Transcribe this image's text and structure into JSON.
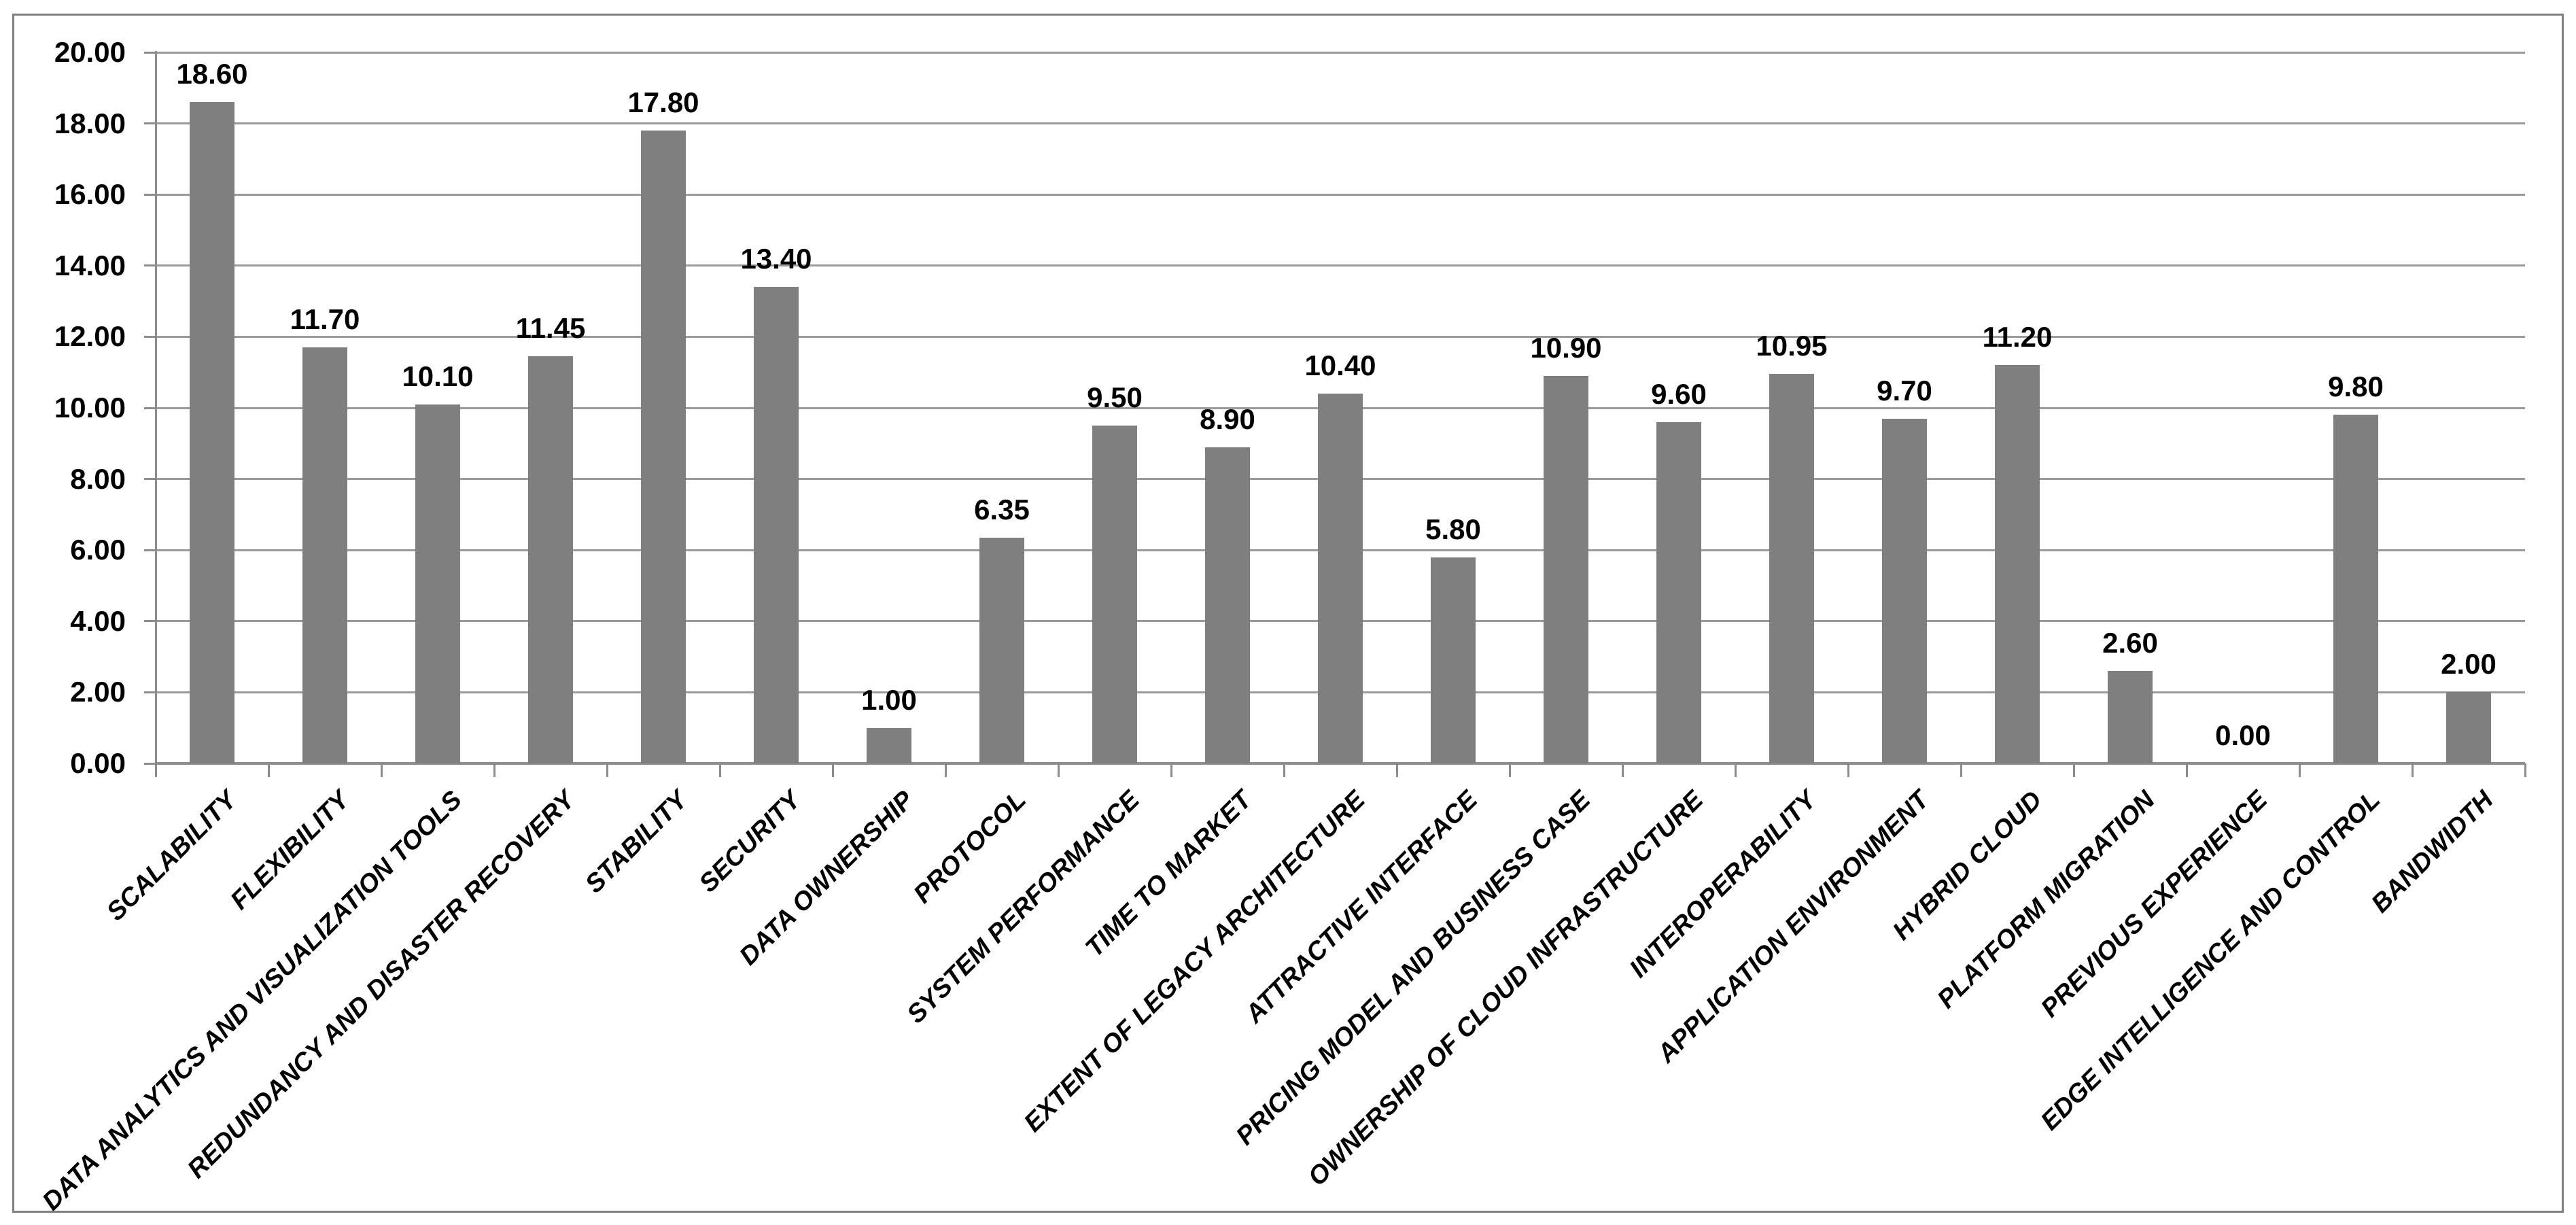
{
  "chart_data": {
    "type": "bar",
    "title": "",
    "xlabel": "",
    "ylabel": "",
    "categories": [
      "SCALABILITY",
      "FLEXIBILITY",
      "DATA ANALYTICS AND VISUALIZATION TOOLS",
      "REDUNDANCY AND DISASTER RECOVERY",
      "STABILITY",
      "SECURITY",
      "DATA OWNERSHIP",
      "PROTOCOL",
      "SYSTEM PERFORMANCE",
      "TIME TO MARKET",
      "EXTENT OF LEGACY ARCHITECTURE",
      "ATTRACTIVE INTERFACE",
      "PRICING MODEL AND BUSINESS CASE",
      "OWNERSHIP OF CLOUD INFRASTRUCTURE",
      "INTEROPERABILITY",
      "APPLICATION ENVIRONMENT",
      "HYBRID CLOUD",
      "PLATFORM MIGRATION",
      "PREVIOUS EXPERIENCE",
      "EDGE INTELLIGENCE AND CONTROL",
      "BANDWIDTH"
    ],
    "values": [
      18.6,
      11.7,
      10.1,
      11.45,
      17.8,
      13.4,
      1.0,
      6.35,
      9.5,
      8.9,
      10.4,
      5.8,
      10.9,
      9.6,
      10.95,
      9.7,
      11.2,
      2.6,
      0.0,
      9.8,
      2.0
    ],
    "value_labels": [
      "18.60",
      "11.70",
      "10.10",
      "11.45",
      "17.80",
      "13.40",
      "1.00",
      "6.35",
      "9.50",
      "8.90",
      "10.40",
      "5.80",
      "10.90",
      "9.60",
      "10.95",
      "9.70",
      "11.20",
      "2.60",
      "0.00",
      "9.80",
      "2.00"
    ],
    "y_axis": {
      "tick_labels": [
        "0.00",
        "2.00",
        "4.00",
        "6.00",
        "8.00",
        "10.00",
        "12.00",
        "14.00",
        "16.00",
        "18.00",
        "20.00"
      ],
      "min": 0,
      "max": 20,
      "step": 2
    },
    "grid": true,
    "legend": false,
    "bar_color": "#7f7f7f",
    "gridline_color": "#9a9a9a",
    "axis_color": "#8c8c8c",
    "text_color": "#000000",
    "frame_border_color": "#808080",
    "background_color": "#ffffff"
  }
}
